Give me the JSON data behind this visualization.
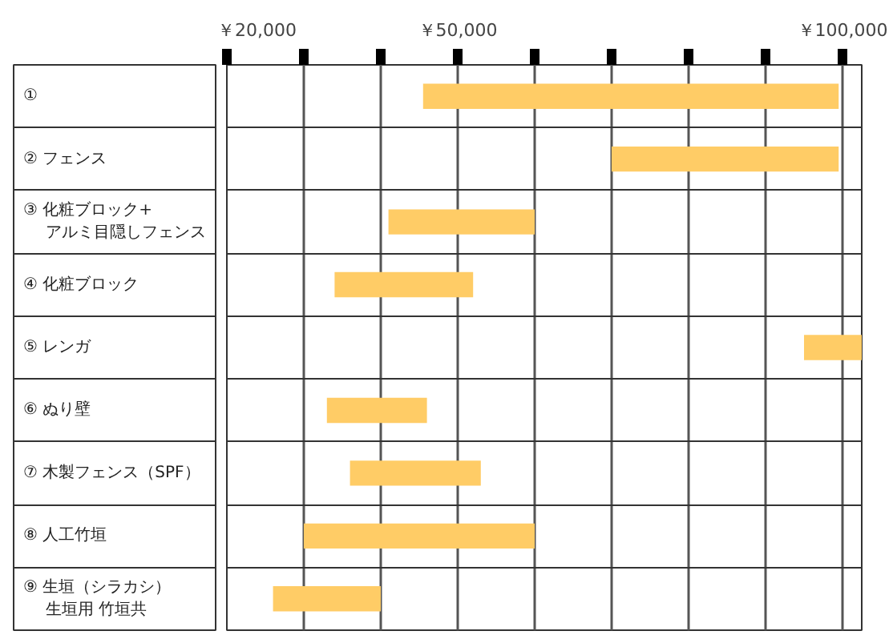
{
  "chart_data": {
    "type": "bar",
    "orientation": "horizontal",
    "categories": [
      "①",
      "② フェンス",
      "③ 化粧ブロック+アルミ目隠しフェンス",
      "④ 化粧ブロック",
      "⑤ レンガ",
      "⑥ ぬり壁",
      "⑦ 木製フェンス（SPF）",
      "⑧ 人工竹垣",
      "⑨ 生垣（シラカシ）生垣用 竹垣共"
    ],
    "base": [
      45500,
      70000,
      41000,
      34000,
      95000,
      33000,
      36000,
      30000,
      26000
    ],
    "values": [
      54000,
      29500,
      19000,
      18000,
      7500,
      13000,
      17000,
      30000,
      14000
    ],
    "color": "#ffcc66",
    "xlim": [
      20000,
      102500
    ],
    "xticks": [
      {
        "value": 20000,
        "label": "￥20,000"
      },
      {
        "value": 30000,
        "label": null
      },
      {
        "value": 40000,
        "label": null
      },
      {
        "value": 50000,
        "label": "￥50,000"
      },
      {
        "value": 60000,
        "label": null
      },
      {
        "value": 70000,
        "label": null
      },
      {
        "value": 80000,
        "label": null
      },
      {
        "value": 90000,
        "label": null
      },
      {
        "value": 100000,
        "label": "￥100,000"
      }
    ],
    "grid": "x"
  }
}
